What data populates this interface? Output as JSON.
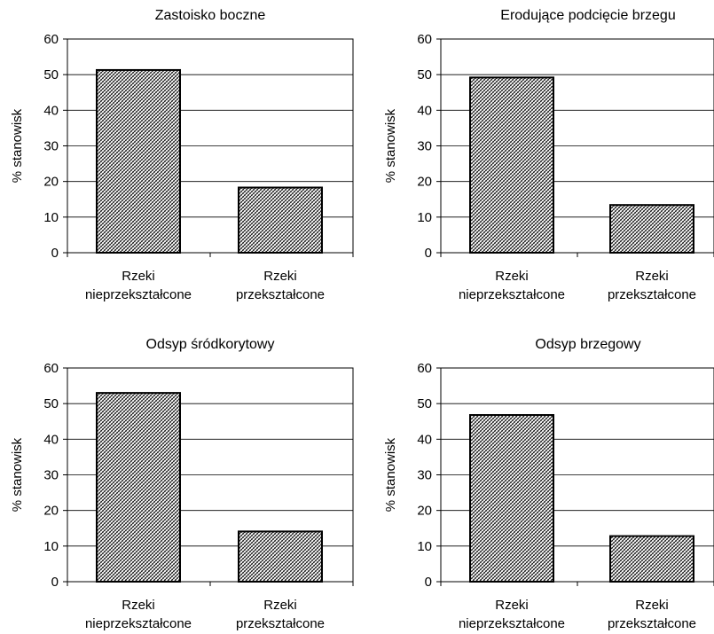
{
  "chart_data": [
    {
      "type": "bar",
      "title": "Zastoisko boczne",
      "ylabel": "% stanowisk",
      "categories": [
        [
          "Rzeki",
          "nieprzekształcone"
        ],
        [
          "Rzeki",
          "przekształcone"
        ]
      ],
      "values": [
        51.3,
        18.3
      ],
      "ylim": [
        0,
        60
      ],
      "yticks": [
        0,
        10,
        20,
        30,
        40,
        50,
        60
      ],
      "grid": true,
      "bar_fill": "hatched"
    },
    {
      "type": "bar",
      "title": "Erodujące podcięcie brzegu",
      "ylabel": "% stanowisk",
      "categories": [
        [
          "Rzeki",
          "nieprzekształcone"
        ],
        [
          "Rzeki",
          "przekształcone"
        ]
      ],
      "values": [
        49.2,
        13.4
      ],
      "ylim": [
        0,
        60
      ],
      "yticks": [
        0,
        10,
        20,
        30,
        40,
        50,
        60
      ],
      "grid": true,
      "bar_fill": "hatched"
    },
    {
      "type": "bar",
      "title": "Odsyp śródkorytowy",
      "ylabel": "% stanowisk",
      "categories": [
        [
          "Rzeki",
          "nieprzekształcone"
        ],
        [
          "Rzeki",
          "przekształcone"
        ]
      ],
      "values": [
        53.0,
        14.1
      ],
      "ylim": [
        0,
        60
      ],
      "yticks": [
        0,
        10,
        20,
        30,
        40,
        50,
        60
      ],
      "grid": true,
      "bar_fill": "hatched"
    },
    {
      "type": "bar",
      "title": "Odsyp brzegowy",
      "ylabel": "% stanowisk",
      "categories": [
        [
          "Rzeki",
          "nieprzekształcone"
        ],
        [
          "Rzeki",
          "przekształcone"
        ]
      ],
      "values": [
        46.8,
        12.8
      ],
      "ylim": [
        0,
        60
      ],
      "yticks": [
        0,
        10,
        20,
        30,
        40,
        50,
        60
      ],
      "grid": true,
      "bar_fill": "hatched"
    }
  ]
}
